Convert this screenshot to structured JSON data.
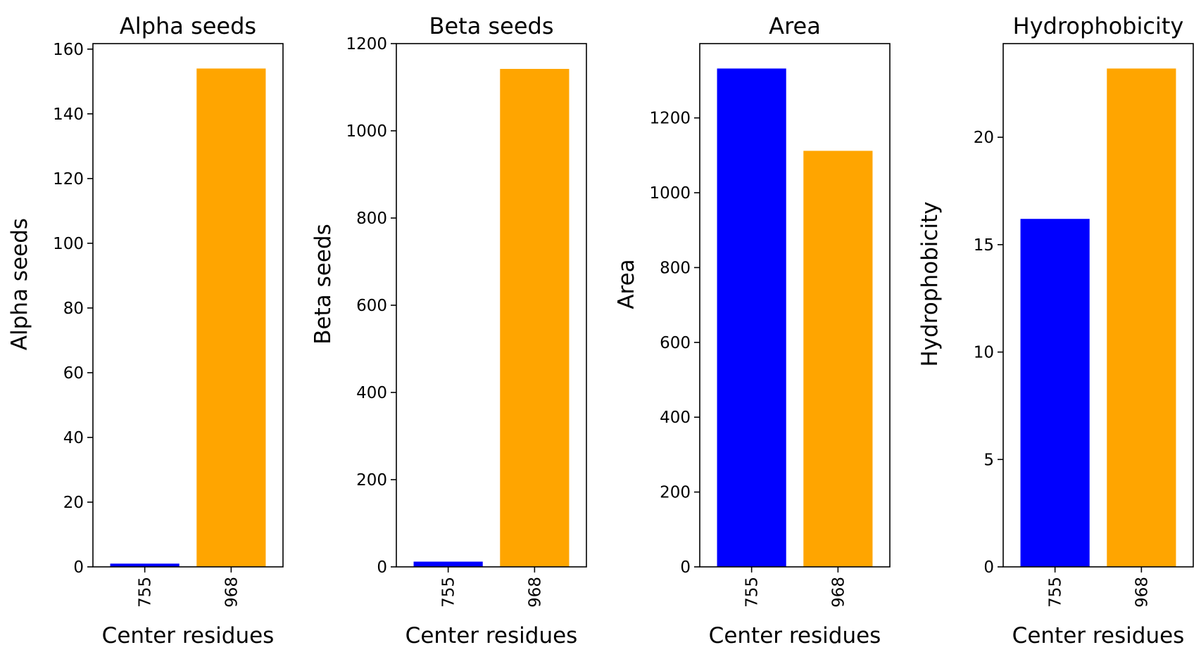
{
  "chart_data": [
    {
      "type": "bar",
      "title": "Alpha seeds",
      "xlabel": "Center residues",
      "ylabel": "Alpha seeds",
      "categories": [
        "755",
        "968"
      ],
      "values": [
        1,
        154
      ],
      "colors": [
        "#0000ff",
        "#ffa500"
      ],
      "ylim": [
        0,
        161.7
      ],
      "yticks": [
        0,
        20,
        40,
        60,
        80,
        100,
        120,
        140,
        160
      ],
      "grid": false
    },
    {
      "type": "bar",
      "title": "Beta seeds",
      "xlabel": "Center residues",
      "ylabel": "Beta seeds",
      "categories": [
        "755",
        "968"
      ],
      "values": [
        12,
        1142
      ],
      "colors": [
        "#0000ff",
        "#ffa500"
      ],
      "ylim": [
        0,
        1200
      ],
      "yticks": [
        0,
        200,
        400,
        600,
        800,
        1000,
        1200
      ],
      "grid": false
    },
    {
      "type": "bar",
      "title": "Area",
      "xlabel": "Center residues",
      "ylabel": "Area",
      "categories": [
        "755",
        "968"
      ],
      "values": [
        1332,
        1112
      ],
      "colors": [
        "#0000ff",
        "#ffa500"
      ],
      "ylim": [
        0,
        1398.6
      ],
      "yticks": [
        0,
        200,
        400,
        600,
        800,
        1000,
        1200
      ],
      "grid": false
    },
    {
      "type": "bar",
      "title": "Hydrophobicity",
      "xlabel": "Center residues",
      "ylabel": "Hydrophobicity",
      "categories": [
        "755",
        "968"
      ],
      "values": [
        16.2,
        23.2
      ],
      "colors": [
        "#0000ff",
        "#ffa500"
      ],
      "ylim": [
        0,
        24.36
      ],
      "yticks": [
        0,
        5,
        10,
        15,
        20
      ],
      "grid": false
    }
  ]
}
